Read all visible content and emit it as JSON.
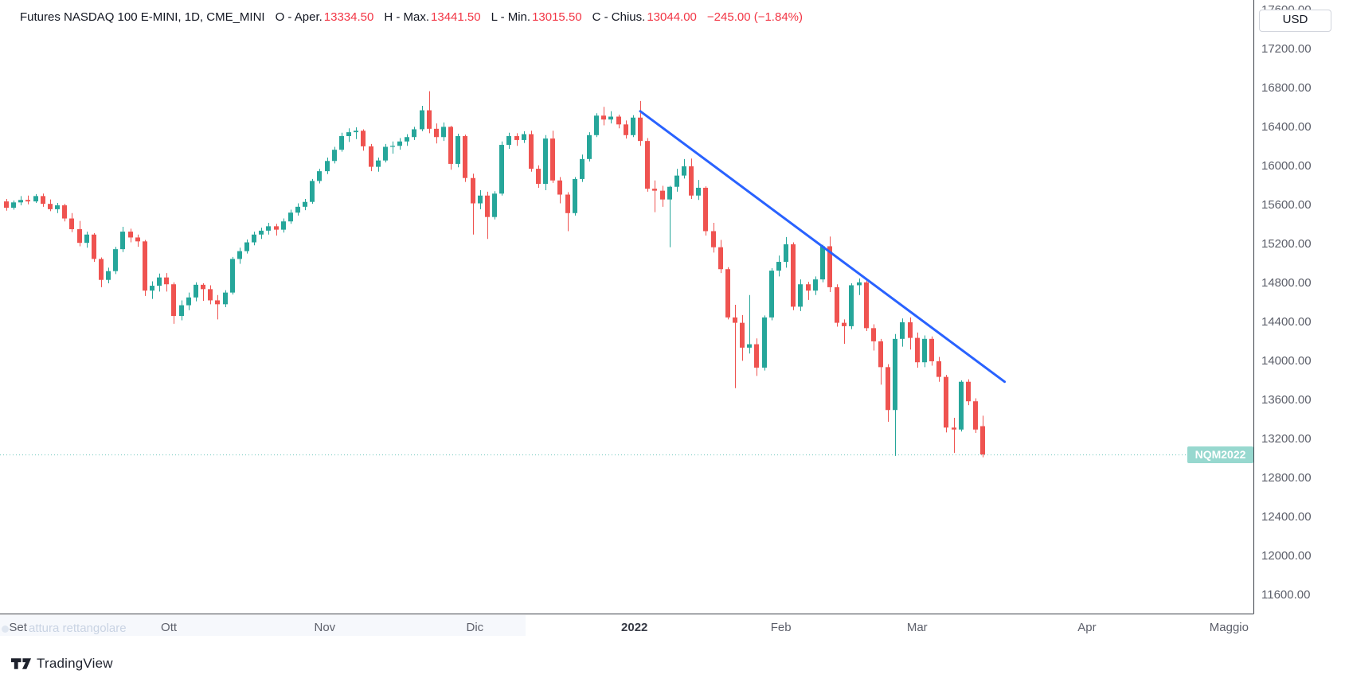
{
  "header": {
    "title": "Futures NASDAQ 100 E-MINI, 1D, CME_MINI",
    "ohlc": [
      {
        "label": "O - Aper.",
        "value": "13334.50"
      },
      {
        "label": "H - Max.",
        "value": "13441.50"
      },
      {
        "label": "L - Min.",
        "value": "13015.50"
      },
      {
        "label": "C - Chius.",
        "value": "13044.00"
      }
    ],
    "change": "−245.00 (−1.84%)",
    "value_color": "#f23645"
  },
  "price_axis": {
    "currency_button": "USD",
    "ticks": [
      "17600.00",
      "17200.00",
      "16800.00",
      "16400.00",
      "16000.00",
      "15600.00",
      "15200.00",
      "14800.00",
      "14400.00",
      "14000.00",
      "13600.00",
      "13200.00",
      "12800.00",
      "12400.00",
      "12000.00",
      "11600.00"
    ]
  },
  "time_axis": {
    "months": [
      {
        "label": "Set",
        "i": 1.6
      },
      {
        "label": "Ott",
        "i": 22.3
      },
      {
        "label": "Nov",
        "i": 43.7
      },
      {
        "label": "Dic",
        "i": 64.3
      },
      {
        "label": "2022",
        "i": 86.2,
        "bold": true
      },
      {
        "label": "Feb",
        "i": 106.3
      },
      {
        "label": "Mar",
        "i": 125.0
      },
      {
        "label": "Apr",
        "i": 148.3
      },
      {
        "label": "Maggio",
        "i": 167.8
      }
    ]
  },
  "last_price_label": {
    "text": "NQM2022",
    "price": 13044,
    "bg": "#97d8cf"
  },
  "overlay": {
    "tool_hint": "attura rettangolare"
  },
  "logo": {
    "text": "TradingView"
  },
  "chart_data": {
    "type": "candlestick",
    "symbol": "NQM2022",
    "title": "Futures NASDAQ 100 E-MINI, 1D, CME_MINI",
    "timeframe": "1D",
    "last_close": 13044.0,
    "last_bar": {
      "open": 13334.5,
      "high": 13441.5,
      "low": 13015.5,
      "close": 13044.0,
      "change": -245.0,
      "change_pct": -1.84
    },
    "colors": {
      "up": "#26a69a",
      "down": "#ef5350",
      "trendline": "#2962ff",
      "last_price_line": "#6fc7bd"
    },
    "y_axis": {
      "min": 11600,
      "max": 17600,
      "tick_step": 400,
      "currency": "USD",
      "grid": false
    },
    "x_axis": {
      "start_month": "Set 2021",
      "end_month": "Maggio 2022",
      "visible_bars": 135
    },
    "trendline": {
      "from": {
        "i": 87,
        "price": 16565
      },
      "to": {
        "i": 137,
        "price": 13790
      }
    },
    "candles": [
      [
        15640,
        15665,
        15545,
        15575
      ],
      [
        15575,
        15650,
        15555,
        15630
      ],
      [
        15630,
        15695,
        15600,
        15655
      ],
      [
        15655,
        15700,
        15610,
        15640
      ],
      [
        15640,
        15715,
        15625,
        15695
      ],
      [
        15695,
        15720,
        15585,
        15615
      ],
      [
        15615,
        15660,
        15540,
        15560
      ],
      [
        15560,
        15625,
        15520,
        15600
      ],
      [
        15600,
        15615,
        15435,
        15465
      ],
      [
        15465,
        15520,
        15325,
        15355
      ],
      [
        15355,
        15440,
        15180,
        15215
      ],
      [
        15215,
        15330,
        15165,
        15300
      ],
      [
        15300,
        15315,
        15020,
        15050
      ],
      [
        15050,
        15065,
        14760,
        14835
      ],
      [
        14835,
        14960,
        14800,
        14925
      ],
      [
        14925,
        15175,
        14895,
        15150
      ],
      [
        15150,
        15380,
        15120,
        15330
      ],
      [
        15330,
        15360,
        15220,
        15270
      ],
      [
        15270,
        15300,
        15175,
        15230
      ],
      [
        15230,
        15245,
        14670,
        14725
      ],
      [
        14725,
        14820,
        14640,
        14775
      ],
      [
        14775,
        14900,
        14715,
        14860
      ],
      [
        14860,
        14905,
        14715,
        14790
      ],
      [
        14790,
        14810,
        14385,
        14465
      ],
      [
        14465,
        14625,
        14420,
        14575
      ],
      [
        14575,
        14705,
        14525,
        14655
      ],
      [
        14655,
        14810,
        14615,
        14785
      ],
      [
        14785,
        14800,
        14620,
        14740
      ],
      [
        14740,
        14780,
        14585,
        14625
      ],
      [
        14625,
        14680,
        14430,
        14585
      ],
      [
        14585,
        14730,
        14555,
        14705
      ],
      [
        14705,
        15070,
        14685,
        15050
      ],
      [
        15050,
        15165,
        15000,
        15130
      ],
      [
        15130,
        15250,
        15105,
        15220
      ],
      [
        15220,
        15330,
        15190,
        15300
      ],
      [
        15300,
        15370,
        15255,
        15340
      ],
      [
        15340,
        15420,
        15300,
        15385
      ],
      [
        15385,
        15410,
        15290,
        15350
      ],
      [
        15350,
        15465,
        15320,
        15435
      ],
      [
        15435,
        15555,
        15410,
        15525
      ],
      [
        15525,
        15620,
        15495,
        15585
      ],
      [
        15585,
        15665,
        15550,
        15635
      ],
      [
        15635,
        15870,
        15615,
        15850
      ],
      [
        15850,
        15975,
        15825,
        15950
      ],
      [
        15950,
        16090,
        15920,
        16055
      ],
      [
        16055,
        16200,
        16030,
        16170
      ],
      [
        16170,
        16345,
        16150,
        16310
      ],
      [
        16310,
        16390,
        16250,
        16350
      ],
      [
        16350,
        16400,
        16280,
        16365
      ],
      [
        16365,
        16380,
        16160,
        16205
      ],
      [
        16205,
        16230,
        15950,
        15995
      ],
      [
        15995,
        16090,
        15945,
        16060
      ],
      [
        16060,
        16230,
        16040,
        16200
      ],
      [
        16200,
        16255,
        16130,
        16210
      ],
      [
        16210,
        16290,
        16170,
        16255
      ],
      [
        16255,
        16330,
        16210,
        16300
      ],
      [
        16300,
        16405,
        16270,
        16380
      ],
      [
        16380,
        16620,
        16360,
        16575
      ],
      [
        16575,
        16770,
        16340,
        16385
      ],
      [
        16385,
        16440,
        16235,
        16300
      ],
      [
        16300,
        16450,
        16260,
        16405
      ],
      [
        16405,
        16415,
        15965,
        16025
      ],
      [
        16025,
        16335,
        15990,
        16310
      ],
      [
        16310,
        16325,
        15840,
        15880
      ],
      [
        15880,
        15925,
        15300,
        15620
      ],
      [
        15620,
        15755,
        15560,
        15700
      ],
      [
        15700,
        15740,
        15255,
        15480
      ],
      [
        15480,
        15745,
        15455,
        15720
      ],
      [
        15720,
        16255,
        15700,
        16220
      ],
      [
        16220,
        16345,
        16180,
        16310
      ],
      [
        16310,
        16340,
        16210,
        16270
      ],
      [
        16270,
        16360,
        16240,
        16330
      ],
      [
        16330,
        16365,
        15945,
        15975
      ],
      [
        15975,
        16010,
        15780,
        15820
      ],
      [
        15820,
        16320,
        15755,
        16285
      ],
      [
        16285,
        16365,
        15830,
        15855
      ],
      [
        15855,
        15890,
        15620,
        15710
      ],
      [
        15710,
        15735,
        15335,
        15520
      ],
      [
        15520,
        15890,
        15495,
        15870
      ],
      [
        15870,
        16120,
        15840,
        16075
      ],
      [
        16075,
        16350,
        16050,
        16320
      ],
      [
        16320,
        16545,
        16300,
        16520
      ],
      [
        16520,
        16610,
        16420,
        16480
      ],
      [
        16480,
        16565,
        16440,
        16510
      ],
      [
        16510,
        16530,
        16390,
        16430
      ],
      [
        16430,
        16470,
        16285,
        16320
      ],
      [
        16320,
        16525,
        16300,
        16500
      ],
      [
        16500,
        16670,
        16210,
        16260
      ],
      [
        16260,
        16290,
        15740,
        15770
      ],
      [
        15770,
        15855,
        15530,
        15750
      ],
      [
        15750,
        15800,
        15585,
        15660
      ],
      [
        15660,
        15800,
        15170,
        15790
      ],
      [
        15790,
        15975,
        15740,
        15905
      ],
      [
        15905,
        16075,
        15875,
        16000
      ],
      [
        16000,
        16080,
        15665,
        15700
      ],
      [
        15700,
        15860,
        15655,
        15780
      ],
      [
        15780,
        15795,
        15290,
        15335
      ],
      [
        15335,
        15420,
        15115,
        15170
      ],
      [
        15170,
        15245,
        14905,
        14945
      ],
      [
        14945,
        14965,
        14430,
        14450
      ],
      [
        14450,
        14580,
        13725,
        14395
      ],
      [
        14395,
        14475,
        14005,
        14140
      ],
      [
        14140,
        14680,
        14080,
        14175
      ],
      [
        14175,
        14235,
        13850,
        13935
      ],
      [
        13935,
        14470,
        13905,
        14450
      ],
      [
        14450,
        14955,
        14420,
        14930
      ],
      [
        14930,
        15085,
        14870,
        15020
      ],
      [
        15020,
        15275,
        14960,
        15200
      ],
      [
        15200,
        15220,
        14525,
        14560
      ],
      [
        14560,
        14840,
        14515,
        14790
      ],
      [
        14790,
        14815,
        14630,
        14725
      ],
      [
        14725,
        14870,
        14680,
        14840
      ],
      [
        14840,
        15195,
        14810,
        15180
      ],
      [
        15180,
        15280,
        14710,
        14760
      ],
      [
        14760,
        14790,
        14355,
        14395
      ],
      [
        14395,
        14430,
        14180,
        14360
      ],
      [
        14360,
        14800,
        14330,
        14780
      ],
      [
        14780,
        14850,
        14680,
        14810
      ],
      [
        14810,
        14830,
        14310,
        14340
      ],
      [
        14340,
        14380,
        14110,
        14205
      ],
      [
        14205,
        14230,
        13760,
        13940
      ],
      [
        13940,
        13970,
        13380,
        13500
      ],
      [
        13500,
        14280,
        13030,
        14230
      ],
      [
        14230,
        14440,
        14150,
        14400
      ],
      [
        14400,
        14450,
        14120,
        14240
      ],
      [
        14240,
        14295,
        13935,
        13990
      ],
      [
        13990,
        14265,
        13940,
        14230
      ],
      [
        14230,
        14255,
        13955,
        14000
      ],
      [
        14000,
        14045,
        13790,
        13840
      ],
      [
        13840,
        13860,
        13270,
        13320
      ],
      [
        13320,
        13420,
        13060,
        13300
      ],
      [
        13300,
        13805,
        13280,
        13790
      ],
      [
        13790,
        13815,
        13550,
        13590
      ],
      [
        13590,
        13620,
        13265,
        13300
      ],
      [
        13334.5,
        13441.5,
        13015.5,
        13044
      ]
    ]
  }
}
